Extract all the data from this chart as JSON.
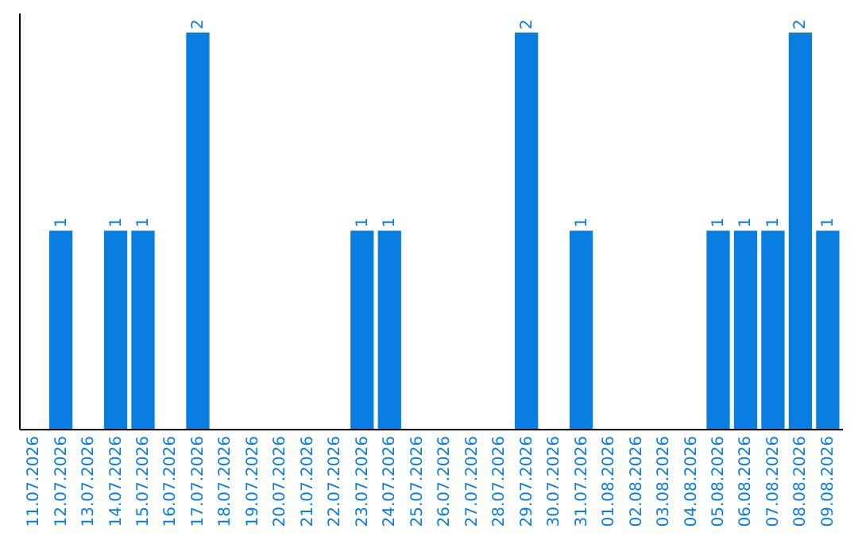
{
  "chart_data": {
    "type": "bar",
    "categories": [
      "11.07.2026",
      "12.07.2026",
      "13.07.2026",
      "14.07.2026",
      "15.07.2026",
      "16.07.2026",
      "17.07.2026",
      "18.07.2026",
      "19.07.2026",
      "20.07.2026",
      "21.07.2026",
      "22.07.2026",
      "23.07.2026",
      "24.07.2026",
      "25.07.2026",
      "26.07.2026",
      "27.07.2026",
      "28.07.2026",
      "29.07.2026",
      "30.07.2026",
      "31.07.2026",
      "01.08.2026",
      "02.08.2026",
      "03.08.2026",
      "04.08.2026",
      "05.08.2026",
      "06.08.2026",
      "07.08.2026",
      "08.08.2026",
      "09.08.2026"
    ],
    "values": [
      0,
      1,
      0,
      1,
      1,
      0,
      2,
      0,
      0,
      0,
      0,
      0,
      1,
      1,
      0,
      0,
      0,
      0,
      2,
      0,
      1,
      0,
      0,
      0,
      0,
      1,
      1,
      1,
      2,
      1
    ],
    "value_labels": [
      null,
      "1",
      null,
      "1",
      "1",
      null,
      "2",
      null,
      null,
      null,
      null,
      null,
      "1",
      "1",
      null,
      null,
      null,
      null,
      "2",
      null,
      "1",
      null,
      null,
      null,
      null,
      "1",
      "1",
      "1",
      "2",
      "1"
    ],
    "color": "#0a7de0",
    "ylim": [
      0,
      2.1
    ],
    "tick_labels": "x"
  }
}
